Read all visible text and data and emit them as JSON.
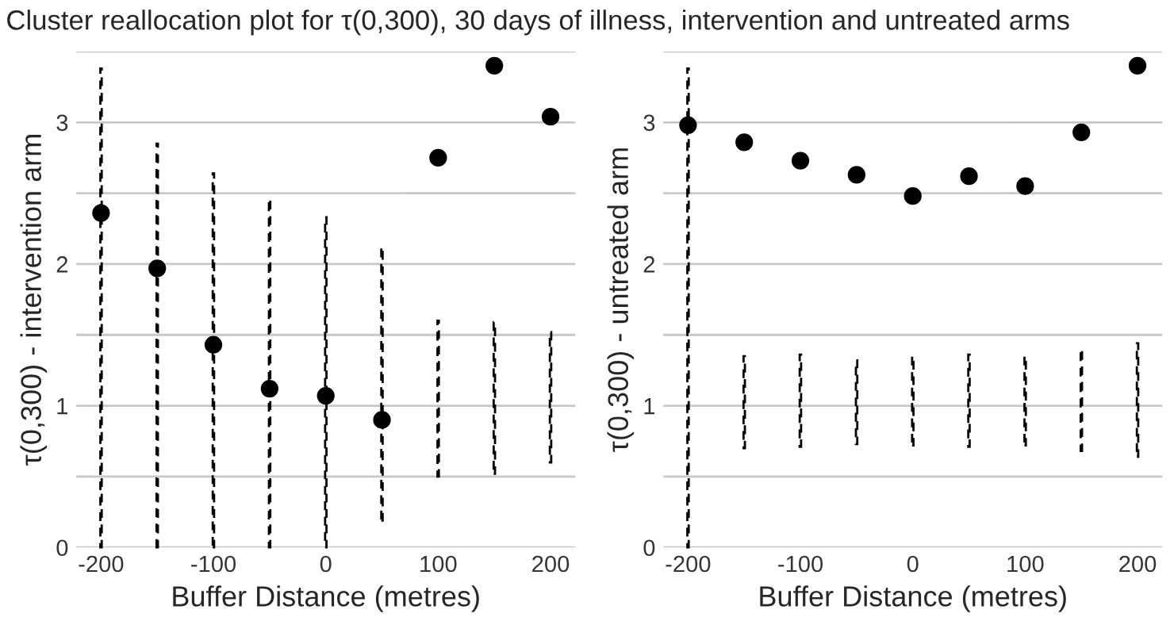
{
  "chart_data": [
    {
      "type": "scatter",
      "title": "Cluster reallocation plot for τ(0,300), 30 days of illness, intervention and untreated arms",
      "xlabel": "Buffer Distance (metres)",
      "ylabel": "τ(0,300) - intervention arm",
      "x": [
        -200,
        -150,
        -100,
        -50,
        0,
        50,
        100,
        150,
        200
      ],
      "xlim": [
        -222,
        222
      ],
      "xticks": [
        -200,
        -100,
        0,
        100,
        200
      ],
      "ylim": [
        0,
        3.5
      ],
      "yticks": [
        0,
        {
          "value": 0.5,
          "label": null
        },
        1,
        {
          "value": 1.5,
          "label": null
        },
        2,
        {
          "value": 2.5,
          "label": null
        },
        3,
        {
          "value": 3.5,
          "label": null
        }
      ],
      "grid": "y",
      "marker": "circle",
      "series": [
        {
          "color": "#000000",
          "values": [
            2.36,
            1.97,
            1.43,
            1.12,
            1.07,
            0.9,
            2.75,
            3.4,
            3.04
          ]
        },
        {
          "type": "bar",
          "color": "#000000",
          "line_style": "dashed",
          "base": [
            0,
            0,
            0,
            0,
            0,
            0.19,
            0.5,
            0.52,
            0.6
          ],
          "values": [
            3.38,
            2.85,
            2.64,
            2.46,
            2.33,
            1.93,
            1.1,
            1.07,
            0.92
          ]
        }
      ]
    },
    {
      "type": "scatter",
      "xlabel": "Buffer Distance (metres)",
      "ylabel": "τ(0,300) - untreated arm",
      "x": [
        -200,
        -150,
        -100,
        -50,
        0,
        50,
        100,
        150,
        200
      ],
      "xlim": [
        -222,
        222
      ],
      "xticks": [
        -200,
        -100,
        0,
        100,
        200
      ],
      "ylim": [
        0,
        3.5
      ],
      "yticks": [
        0,
        {
          "value": 0.5,
          "label": null
        },
        1,
        {
          "value": 1.5,
          "label": null
        },
        2,
        {
          "value": 2.5,
          "label": null
        },
        3,
        {
          "value": 3.5,
          "label": null
        }
      ],
      "grid": "y",
      "marker": "circle",
      "series": [
        {
          "color": "#000000",
          "values": [
            2.98,
            2.86,
            2.73,
            2.63,
            2.48,
            2.62,
            2.55,
            2.93,
            3.4
          ]
        },
        {
          "type": "bar",
          "color": "#000000",
          "line_style": "dashed",
          "base": [
            0,
            0.7,
            0.71,
            0.73,
            0.72,
            0.71,
            0.72,
            0.68,
            0.64
          ],
          "values": [
            3.38,
            0.65,
            0.65,
            0.59,
            0.63,
            0.65,
            0.63,
            0.72,
            0.8
          ]
        }
      ]
    }
  ]
}
